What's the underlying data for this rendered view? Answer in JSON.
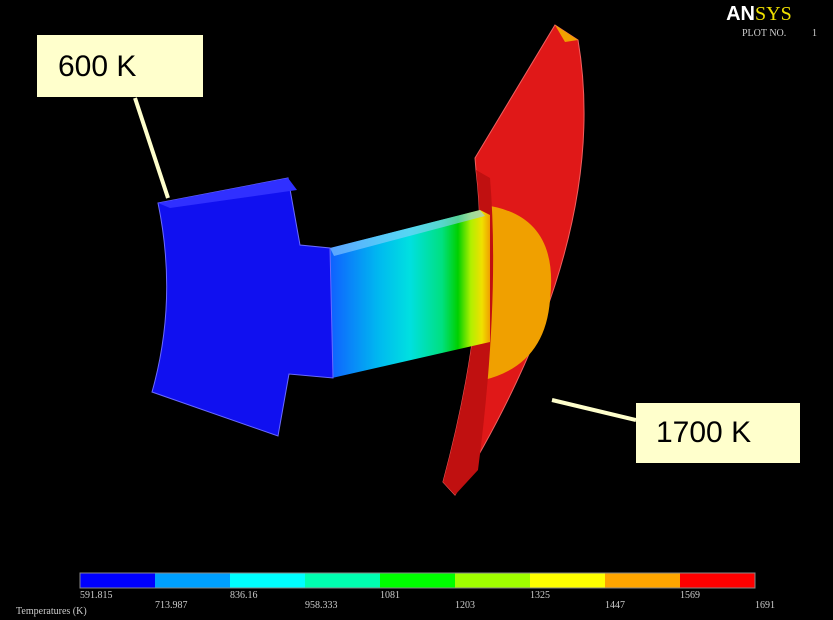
{
  "logo": [
    "AN",
    "SYS"
  ],
  "plot_label": "PLOT NO.",
  "plot_number": 1,
  "callouts": [
    "600 K",
    "1700 K"
  ],
  "legend": {
    "title": "Temperatures (K)",
    "labels": [
      591.815,
      713.987,
      836.16,
      958.333,
      1081,
      1203,
      1325,
      1447,
      1569,
      1691
    ],
    "colors": [
      "#0000ff",
      "#00a0ff",
      "#00ffff",
      "#00ffb0",
      "#00ff00",
      "#a0ff00",
      "#ffff00",
      "#ffa500",
      "#ff0000"
    ]
  }
}
